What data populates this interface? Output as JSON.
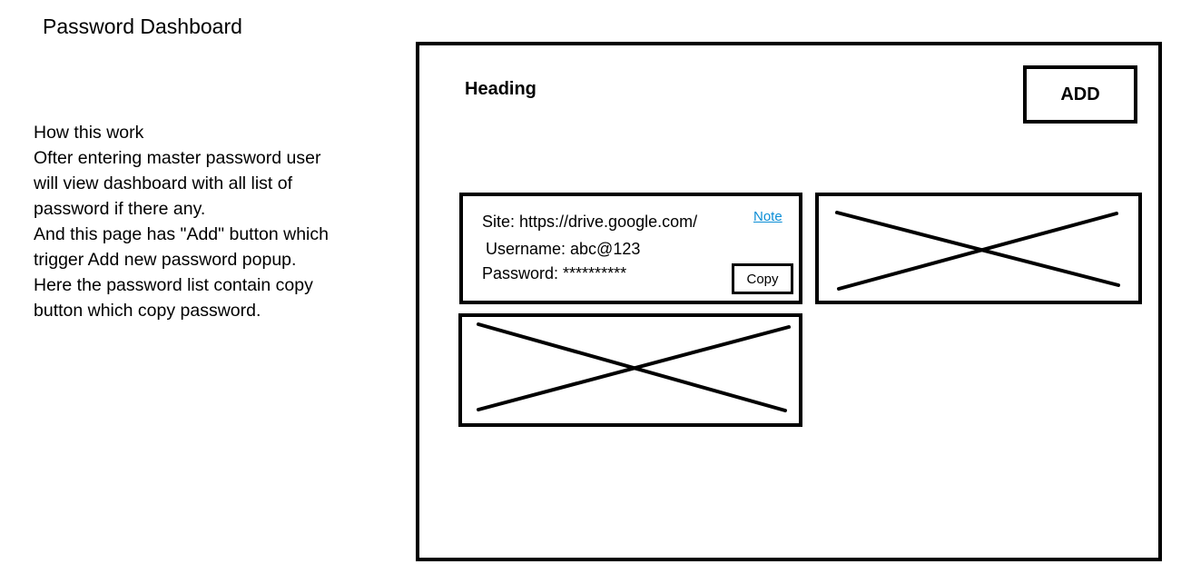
{
  "page": {
    "title": "Password Dashboard"
  },
  "description": {
    "lines": [
      "How this work",
      "Ofter entering master password user",
      "will view dashboard with all list of",
      "password if there any.",
      "And this page has \"Add\" button which",
      "trigger Add new password popup.",
      "Here the password list contain copy",
      "button which copy password."
    ]
  },
  "dashboard": {
    "heading": "Heading",
    "add_label": "ADD",
    "cards": [
      {
        "site": "Site: https://drive.google.com/",
        "username": "Username: abc@123",
        "password": "Password: **********",
        "note_label": "Note",
        "copy_label": "Copy"
      }
    ]
  },
  "colors": {
    "link": "#0b8ed6",
    "border": "#000000"
  }
}
